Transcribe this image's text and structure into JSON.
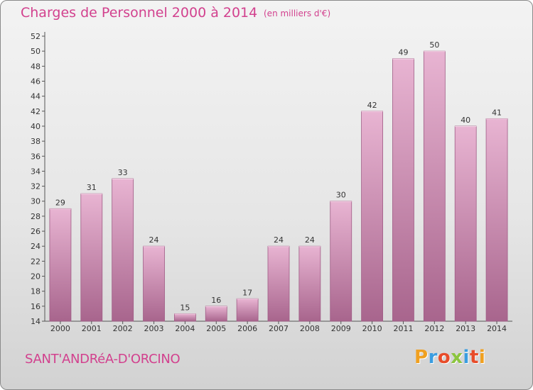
{
  "header": {
    "title": "Charges de Personnel 2000 à 2014",
    "subtitle": "(en milliers d'€)"
  },
  "footer": {
    "commune": "SANT'ANDRéA-D'ORCINO",
    "logo": {
      "letters": [
        "P",
        "r",
        "o",
        "x",
        "i",
        "t",
        "i"
      ],
      "colors": [
        "#f0a020",
        "#3a9de0",
        "#e84c2a",
        "#8bc53f",
        "#3a9de0",
        "#e84c2a",
        "#f0a020"
      ]
    }
  },
  "colors": {
    "bar": "#c27aa6",
    "bar_light": "#e8b4d2",
    "bar_dark": "#a8658d",
    "accent": "#d2418e"
  },
  "chart_data": {
    "type": "bar",
    "categories": [
      "2000",
      "2001",
      "2002",
      "2003",
      "2004",
      "2005",
      "2006",
      "2007",
      "2008",
      "2009",
      "2010",
      "2011",
      "2012",
      "2013",
      "2014"
    ],
    "values": [
      29,
      31,
      33,
      24,
      15,
      16,
      17,
      24,
      24,
      30,
      42,
      49,
      50,
      40,
      41
    ],
    "ylim": [
      14,
      52
    ],
    "yticks": [
      14,
      16,
      18,
      20,
      22,
      24,
      26,
      28,
      30,
      32,
      34,
      36,
      38,
      40,
      42,
      44,
      46,
      48,
      50,
      52
    ],
    "grid": false
  }
}
